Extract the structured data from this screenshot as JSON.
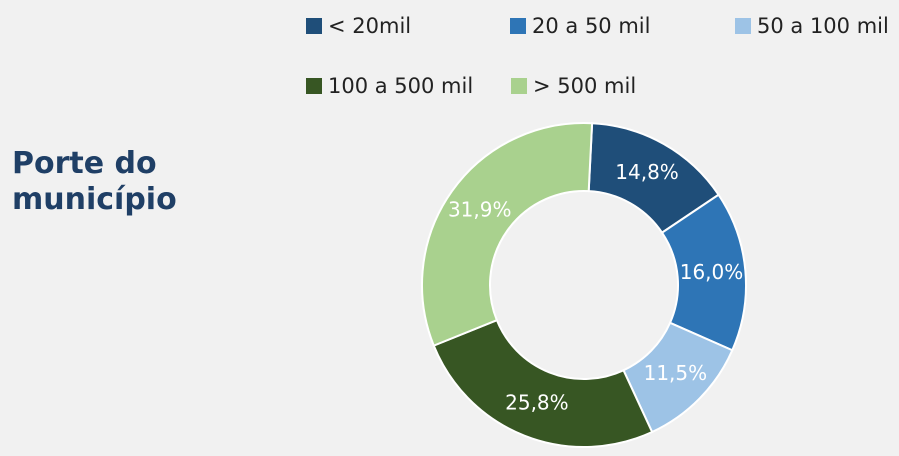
{
  "title": "Porte do município",
  "chart_data": {
    "type": "pie",
    "variant": "donut",
    "start": "top, clockwise",
    "legend": "top",
    "categories": [
      "< 20mil",
      "20 a 50 mil",
      "50 a 100 mil",
      "100 a 500 mil",
      "> 500 mil"
    ],
    "values": [
      14.8,
      16.0,
      11.5,
      25.8,
      31.9
    ],
    "value_labels": [
      "14,8%",
      "16,0%",
      "11,5%",
      "25,8%",
      "31,9%"
    ],
    "colors": [
      "#1f4e79",
      "#2e75b6",
      "#9dc3e6",
      "#375623",
      "#a9d18e"
    ],
    "label_colors": [
      "#ffffff",
      "#ffffff",
      "#ffffff",
      "#ffffff",
      "#ffffff"
    ]
  }
}
